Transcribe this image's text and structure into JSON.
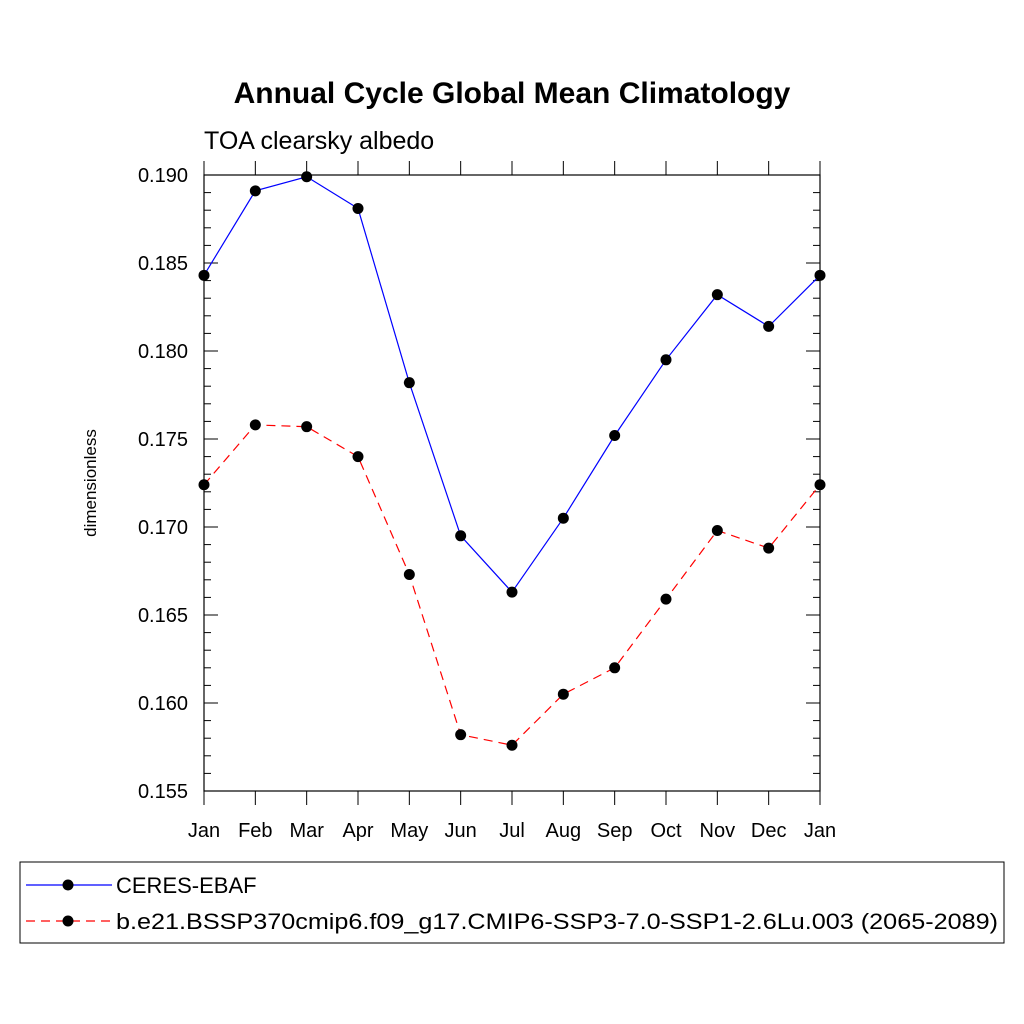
{
  "chart_data": {
    "type": "line",
    "title": "Annual Cycle Global Mean Climatology",
    "subtitle": "TOA clearsky albedo",
    "xlabel": "",
    "ylabel": "dimensionless",
    "categories": [
      "Jan",
      "Feb",
      "Mar",
      "Apr",
      "May",
      "Jun",
      "Jul",
      "Aug",
      "Sep",
      "Oct",
      "Nov",
      "Dec",
      "Jan"
    ],
    "ylim": [
      0.155,
      0.19
    ],
    "yticks": [
      "0.155",
      "0.160",
      "0.165",
      "0.170",
      "0.175",
      "0.180",
      "0.185",
      "0.190"
    ],
    "legend_position": "bottom",
    "series": [
      {
        "name": "CERES-EBAF",
        "color": "#0000ff",
        "line_style": "solid",
        "marker": "filled-circle",
        "values": [
          0.1843,
          0.1891,
          0.1899,
          0.1881,
          0.1782,
          0.1695,
          0.1663,
          0.1705,
          0.1752,
          0.1795,
          0.1832,
          0.1814,
          0.1843
        ]
      },
      {
        "name": "b.e21.BSSP370cmip6.f09_g17.CMIP6-SSP3-7.0-SSP1-2.6Lu.003 (2065-2089)",
        "color": "#ff0000",
        "line_style": "dashed",
        "marker": "filled-circle",
        "values": [
          0.1724,
          0.1758,
          0.1757,
          0.174,
          0.1673,
          0.1582,
          0.1576,
          0.1605,
          0.162,
          0.1659,
          0.1698,
          0.1688,
          0.1724
        ]
      }
    ]
  }
}
